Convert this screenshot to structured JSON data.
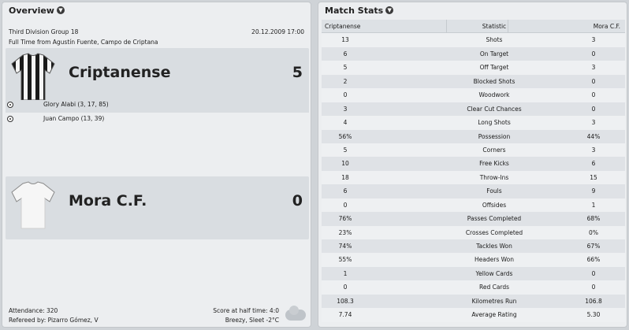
{
  "overview": {
    "title": "Overview",
    "competition": "Third Division Group 18",
    "date": "20.12.2009 17:00",
    "venue": "Full Time from Agustín Fuente, Campo de Criptana",
    "home": {
      "name": "Criptanense",
      "score": "5",
      "kit_color": "#1a1a1a",
      "scorers": [
        "Glory Alabi (3, 17, 85)",
        "Juan Campo (13, 39)"
      ]
    },
    "away": {
      "name": "Mora C.F.",
      "score": "0",
      "kit_color": "#f2f2f2"
    },
    "attendance": "Attendance: 320",
    "referee": "Refereed by: Pizarro Gómez, V",
    "halftime": "Score at half time: 4:0",
    "weather": "Breezy, Sleet -2°C",
    "weather_icon": "sleet-icon"
  },
  "match_stats": {
    "title": "Match Stats",
    "headers": {
      "home": "Criptanense",
      "statistic": "Statistic",
      "away": "Mora C.F."
    },
    "rows": [
      {
        "home": "13",
        "label": "Shots",
        "away": "3"
      },
      {
        "home": "6",
        "label": "On Target",
        "away": "0"
      },
      {
        "home": "5",
        "label": "Off Target",
        "away": "3"
      },
      {
        "home": "2",
        "label": "Blocked Shots",
        "away": "0"
      },
      {
        "home": "0",
        "label": "Woodwork",
        "away": "0"
      },
      {
        "home": "3",
        "label": "Clear Cut Chances",
        "away": "0"
      },
      {
        "home": "4",
        "label": "Long Shots",
        "away": "3"
      },
      {
        "home": "56%",
        "label": "Possession",
        "away": "44%"
      },
      {
        "home": "5",
        "label": "Corners",
        "away": "3"
      },
      {
        "home": "10",
        "label": "Free Kicks",
        "away": "6"
      },
      {
        "home": "18",
        "label": "Throw-Ins",
        "away": "15"
      },
      {
        "home": "6",
        "label": "Fouls",
        "away": "9"
      },
      {
        "home": "0",
        "label": "Offsides",
        "away": "1"
      },
      {
        "home": "76%",
        "label": "Passes Completed",
        "away": "68%"
      },
      {
        "home": "23%",
        "label": "Crosses Completed",
        "away": "0%"
      },
      {
        "home": "74%",
        "label": "Tackles Won",
        "away": "67%"
      },
      {
        "home": "55%",
        "label": "Headers Won",
        "away": "66%"
      },
      {
        "home": "1",
        "label": "Yellow Cards",
        "away": "0"
      },
      {
        "home": "0",
        "label": "Red Cards",
        "away": "0"
      },
      {
        "home": "108.3",
        "label": "Kilometres Run",
        "away": "106.8"
      },
      {
        "home": "7.74",
        "label": "Average Rating",
        "away": "5.30"
      }
    ]
  }
}
